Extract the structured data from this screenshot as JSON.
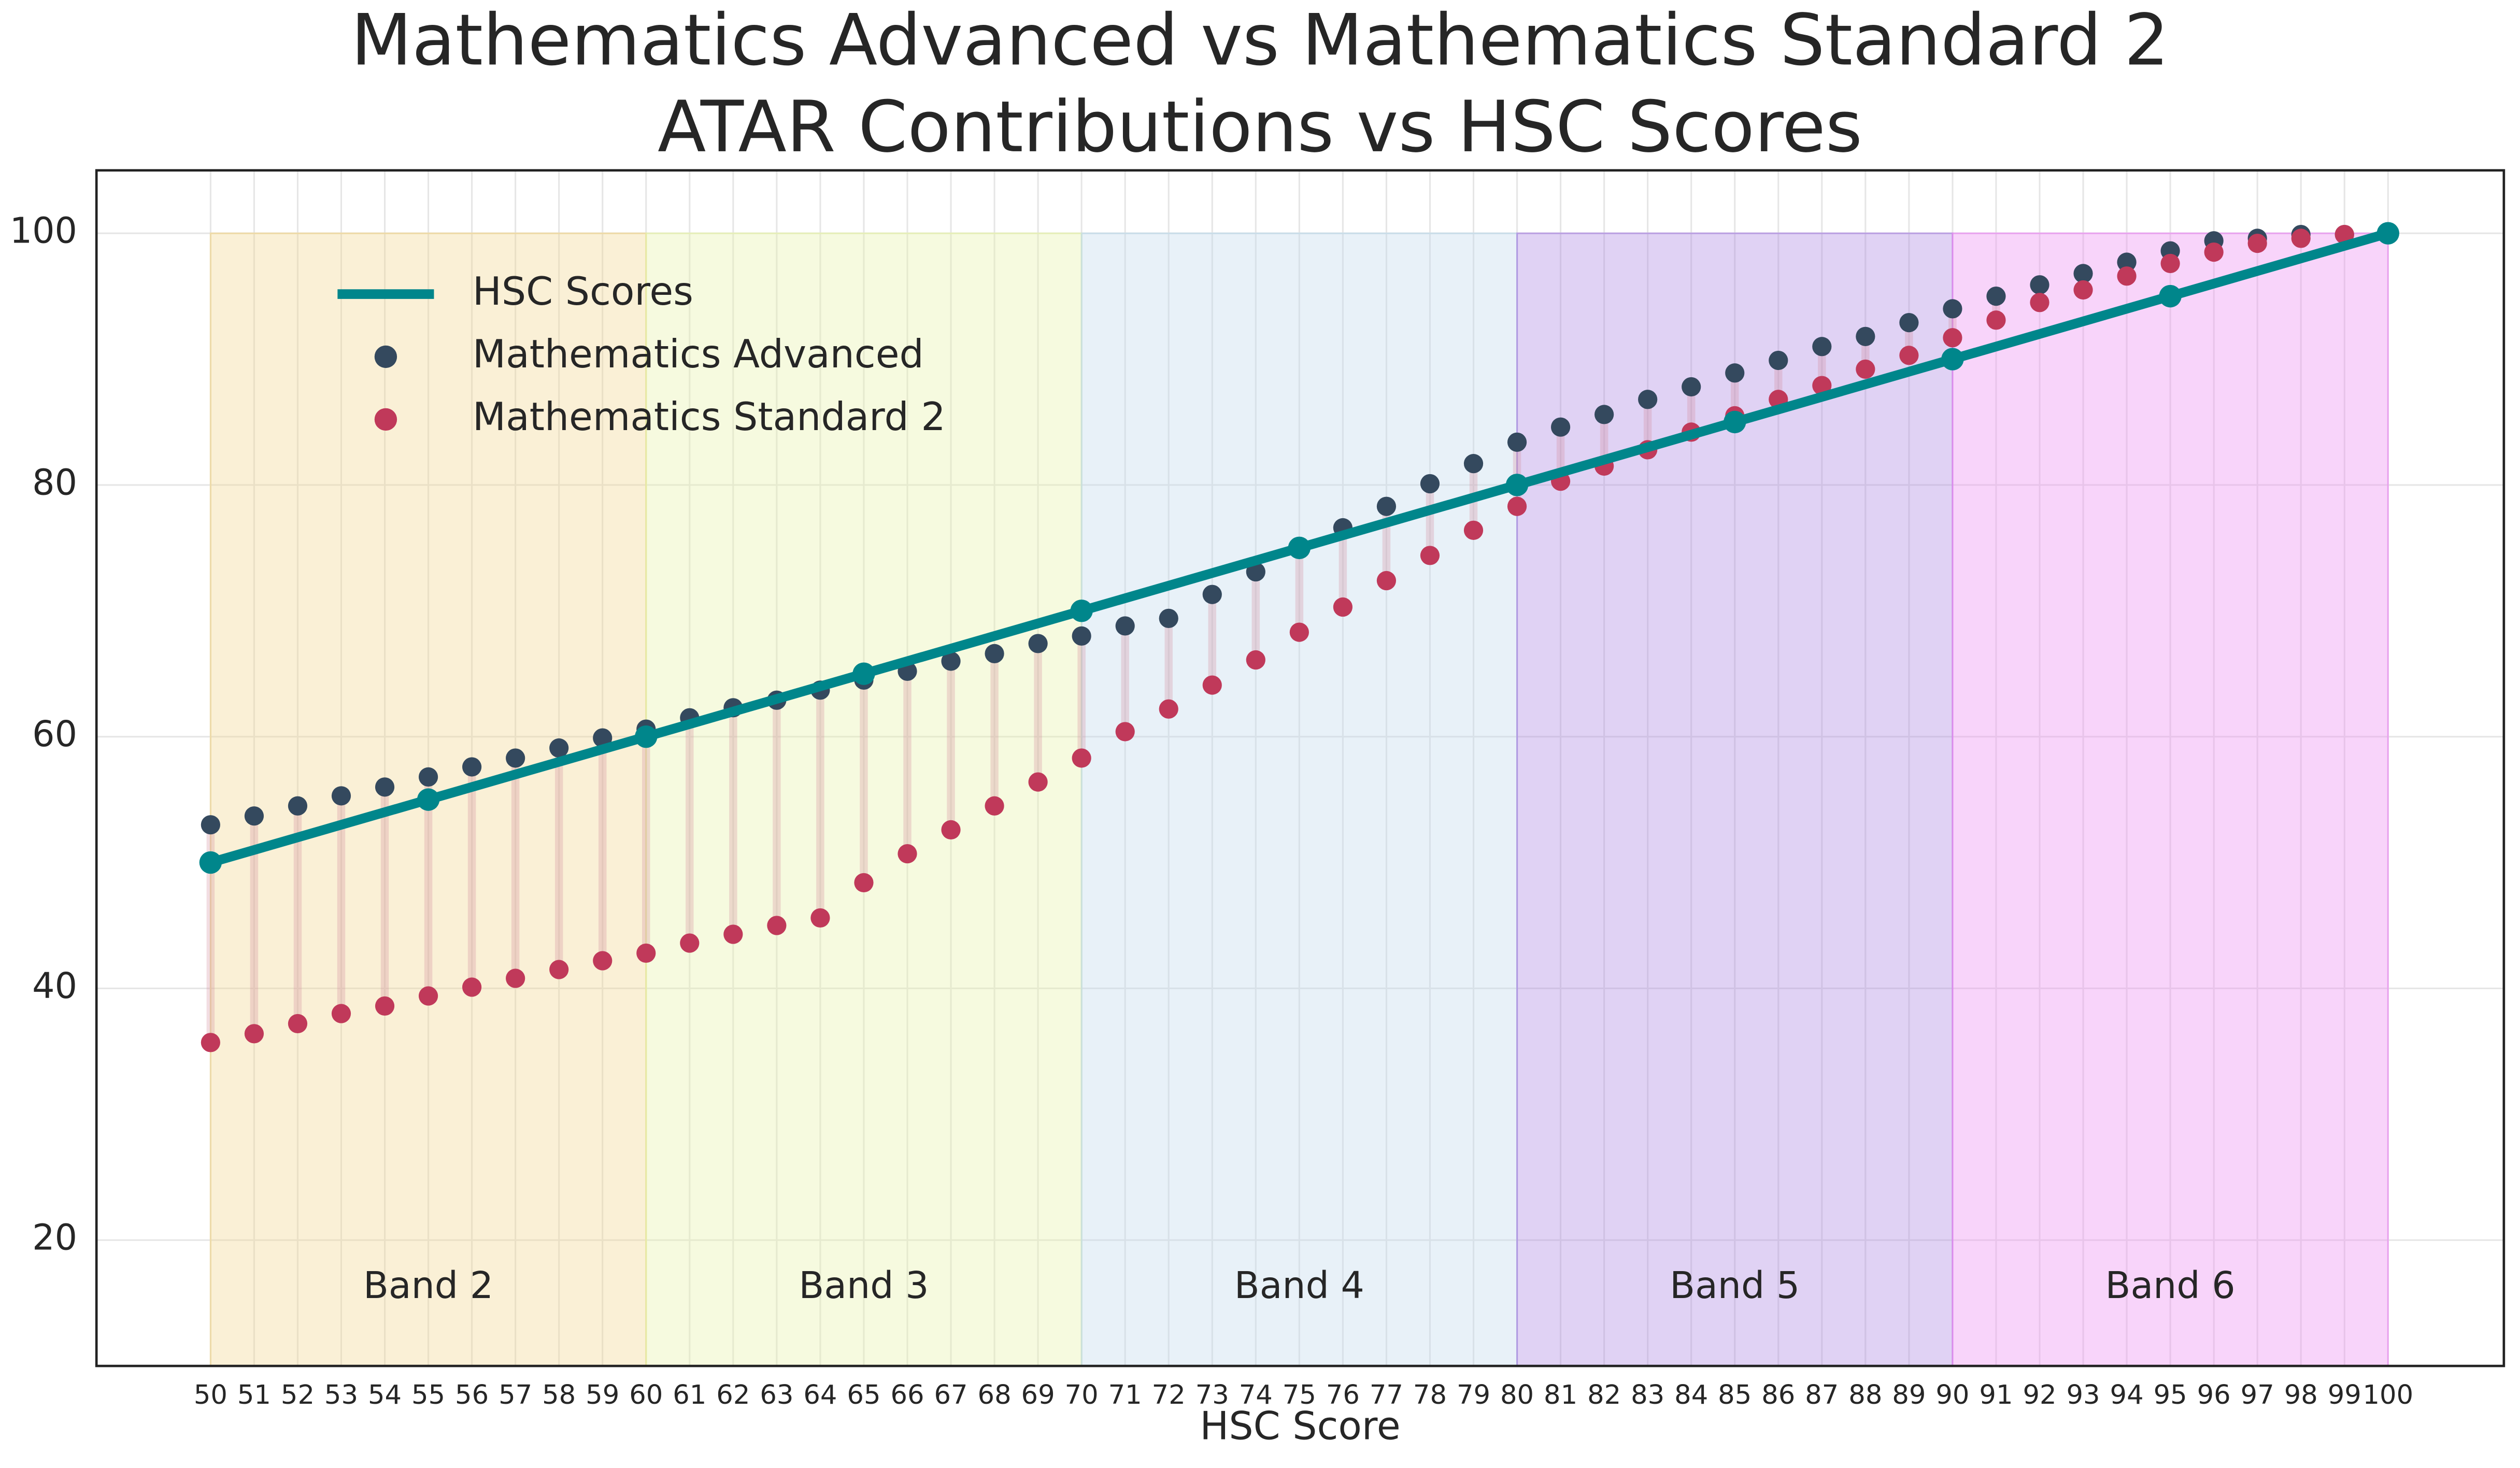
{
  "chart_data": {
    "type": "line",
    "title": "Mathematics Advanced vs Mathematics Standard 2",
    "subtitle": "ATAR Contributions vs HSC Scores",
    "x_label": "HSC Score",
    "xlim": [
      47.38,
      102.66
    ],
    "ylim": [
      10,
      105
    ],
    "yticks": [
      20,
      40,
      60,
      80,
      100
    ],
    "xticks": [
      50,
      51,
      52,
      53,
      54,
      55,
      56,
      57,
      58,
      59,
      60,
      61,
      62,
      63,
      64,
      65,
      66,
      67,
      68,
      69,
      70,
      71,
      72,
      73,
      74,
      75,
      76,
      77,
      78,
      79,
      80,
      81,
      82,
      83,
      84,
      85,
      86,
      87,
      88,
      89,
      90,
      91,
      92,
      93,
      94,
      95,
      96,
      97,
      98,
      99,
      100
    ],
    "grid": true,
    "legend": "upper-left",
    "x": [
      50,
      51,
      52,
      53,
      54,
      55,
      56,
      57,
      58,
      59,
      60,
      61,
      62,
      63,
      64,
      65,
      66,
      67,
      68,
      69,
      70,
      71,
      72,
      73,
      74,
      75,
      76,
      77,
      78,
      79,
      80,
      81,
      82,
      83,
      84,
      85,
      86,
      87,
      88,
      89,
      90,
      91,
      92,
      93,
      94,
      95,
      96,
      97,
      98,
      99,
      100
    ],
    "series": [
      {
        "name": "Mathematics Advanced",
        "type": "scatter",
        "color": "#34495e",
        "values": [
          53.0,
          53.7,
          54.5,
          55.3,
          56.0,
          56.8,
          57.6,
          58.3,
          59.1,
          59.9,
          60.6,
          61.5,
          62.3,
          62.9,
          63.7,
          64.5,
          65.2,
          66.0,
          66.6,
          67.4,
          68.0,
          68.8,
          69.4,
          71.3,
          73.1,
          74.9,
          76.6,
          78.3,
          80.1,
          81.7,
          83.4,
          84.6,
          85.6,
          86.8,
          87.8,
          88.9,
          89.9,
          91.0,
          91.8,
          92.9,
          94.0,
          95.0,
          95.9,
          96.8,
          97.7,
          98.6,
          99.4,
          99.6,
          99.9,
          99.9,
          100
        ]
      },
      {
        "name": "Mathematics Standard 2",
        "type": "scatter",
        "color": "#c0395a",
        "values": [
          35.7,
          36.4,
          37.2,
          38.0,
          38.6,
          39.4,
          40.1,
          40.8,
          41.5,
          42.2,
          42.8,
          43.6,
          44.3,
          45.0,
          45.6,
          48.4,
          50.7,
          52.6,
          54.5,
          56.4,
          58.3,
          60.4,
          62.2,
          64.1,
          66.1,
          68.3,
          70.3,
          72.4,
          74.4,
          76.4,
          78.3,
          80.3,
          81.5,
          82.8,
          84.2,
          85.5,
          86.8,
          87.9,
          89.2,
          90.3,
          91.7,
          93.1,
          94.5,
          95.5,
          96.6,
          97.6,
          98.5,
          99.2,
          99.6,
          99.9,
          99.9
        ]
      },
      {
        "name": "HSC Scores",
        "type": "line",
        "color": "#00868b",
        "x": [
          50,
          55,
          60,
          65,
          70,
          75,
          80,
          85,
          90,
          95,
          100
        ],
        "values": [
          50,
          55,
          60,
          65,
          70,
          75,
          80,
          85,
          90,
          95,
          100
        ]
      }
    ],
    "bands": {
      "ymax": 100,
      "items": [
        {
          "label": "Band 2",
          "range": [
            50,
            60
          ],
          "color": "#f0d38a"
        },
        {
          "label": "Band 3",
          "range": [
            60,
            70
          ],
          "color": "#e4f1a4"
        },
        {
          "label": "Band 4",
          "range": [
            70,
            80
          ],
          "color": "#bcd8ea"
        },
        {
          "label": "Band 5",
          "range": [
            80,
            90
          ],
          "color": "#a57fe0"
        },
        {
          "label": "Band 6",
          "range": [
            90,
            100
          ],
          "color": "#ea83f2"
        }
      ]
    }
  }
}
